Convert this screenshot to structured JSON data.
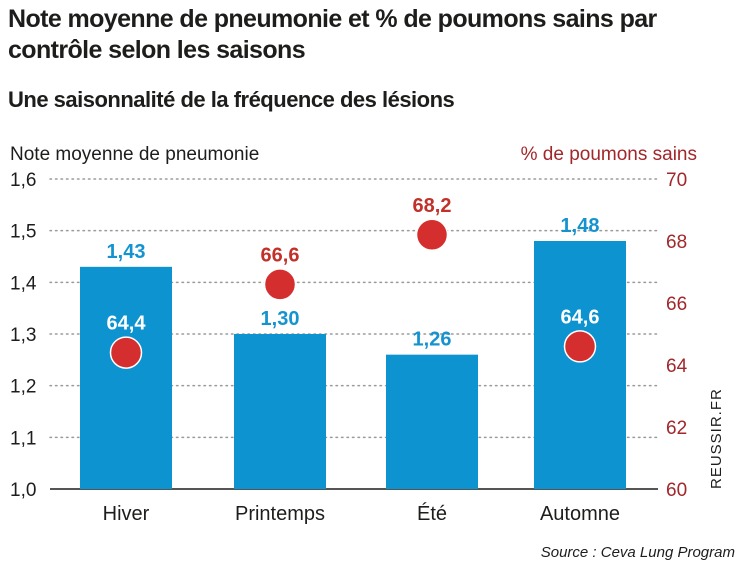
{
  "title": "Note moyenne de pneumonie et % de poumons sains par contrôle selon les saisons",
  "subtitle": "Une saisonnalité de la fréquence des lésions",
  "source": "Source : Ceva Lung Program",
  "watermark": "REUSSIR.FR",
  "colors": {
    "bar": "#0e93d1",
    "bar_label": "#1493cf",
    "point": "#d42e2e",
    "point_label": "#c23129",
    "right_axis_text": "#a1272b",
    "grid": "#9a9a9a"
  },
  "chart_data": {
    "type": "bar",
    "ylabel": "Note moyenne de pneumonie",
    "y2label": "% de poumons sains",
    "ylim": [
      1.0,
      1.6
    ],
    "y2lim": [
      60,
      70
    ],
    "yticks": [
      "1,0",
      "1,1",
      "1,2",
      "1,3",
      "1,4",
      "1,5",
      "1,6"
    ],
    "y2ticks": [
      "60",
      "62",
      "64",
      "66",
      "68",
      "70"
    ],
    "grid": true,
    "categories": [
      "Hiver",
      "Printemps",
      "Été",
      "Automne"
    ],
    "series": [
      {
        "kind": "bar",
        "axis": "left",
        "values": [
          1.43,
          1.3,
          1.26,
          1.48
        ],
        "labels": [
          "1,43",
          "1,30",
          "1,26",
          "1,48"
        ]
      },
      {
        "kind": "scatter",
        "axis": "right",
        "values": [
          64.4,
          66.6,
          68.2,
          64.6
        ],
        "labels": [
          "64,4",
          "66,6",
          "68,2",
          "64,6"
        ]
      }
    ]
  }
}
